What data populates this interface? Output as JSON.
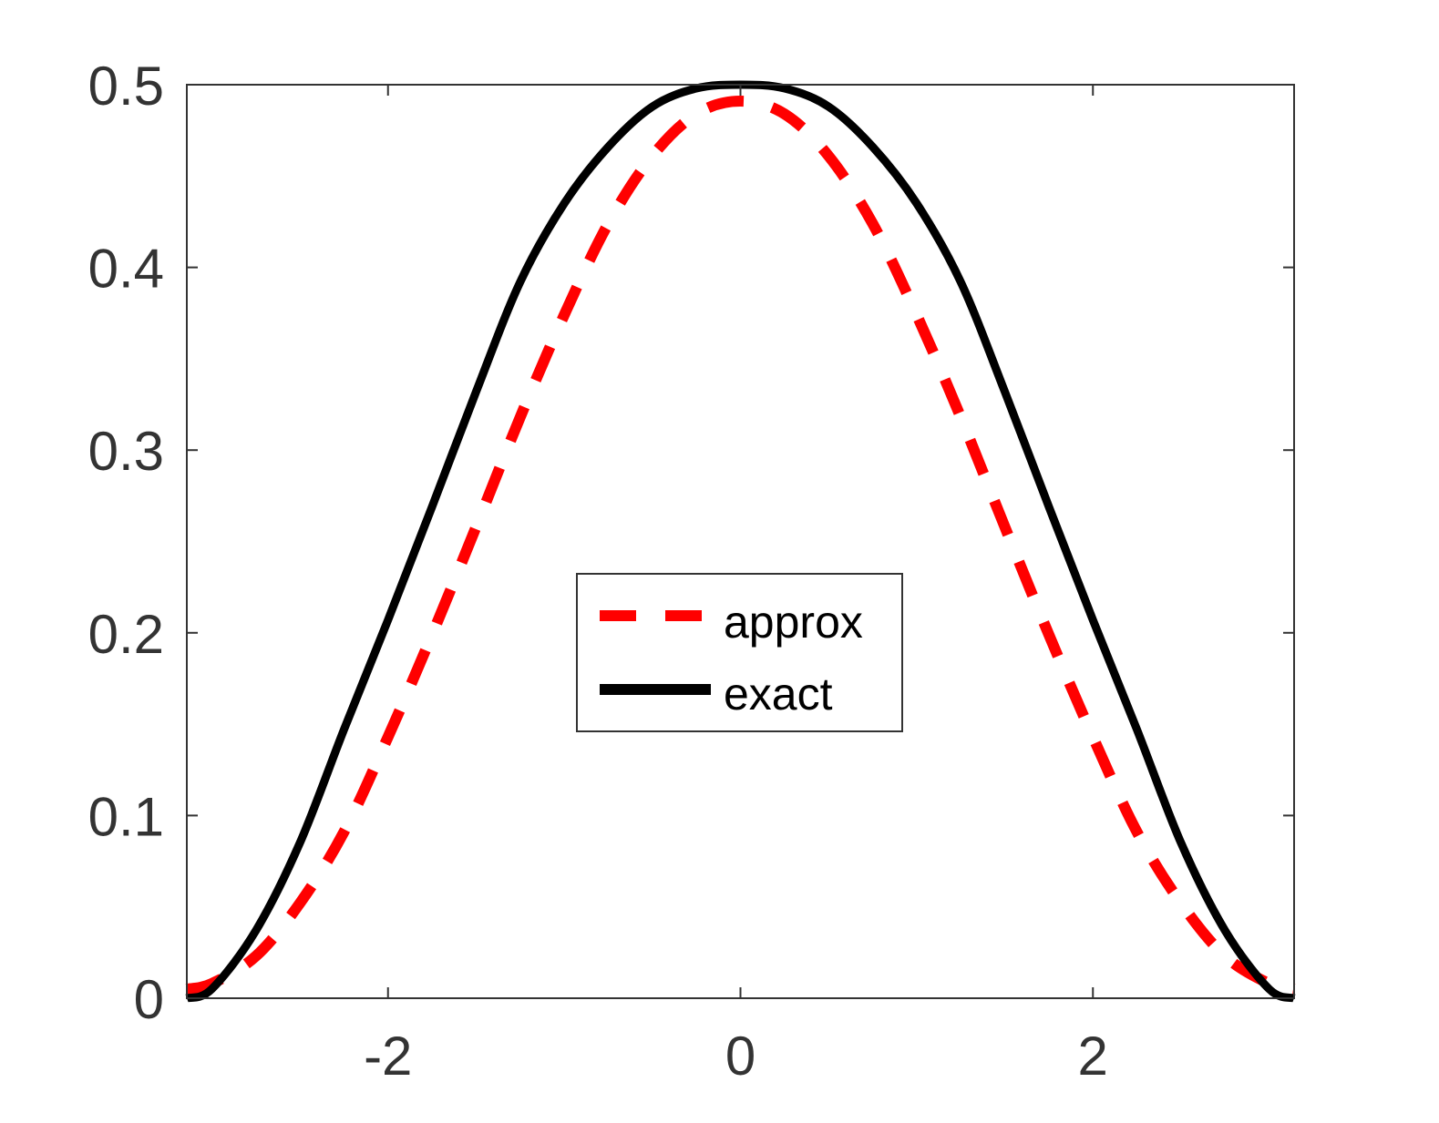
{
  "chart_data": {
    "type": "line",
    "title": "",
    "xlabel": "",
    "ylabel": "",
    "xlim": [
      -3.14159,
      3.14159
    ],
    "ylim": [
      0,
      0.5
    ],
    "xticks": [
      -2,
      0,
      2
    ],
    "xtick_labels": [
      "-2",
      "0",
      "2"
    ],
    "yticks": [
      0,
      0.1,
      0.2,
      0.3,
      0.4,
      0.5
    ],
    "ytick_labels": [
      "0",
      "0.1",
      "0.2",
      "0.3",
      "0.4",
      "0.5"
    ],
    "grid": false,
    "legend_position": "center",
    "series": [
      {
        "name": "approx",
        "color": "#ff0000",
        "style": "dashed",
        "x": [
          -3.1416,
          -3.0,
          -2.75,
          -2.5,
          -2.25,
          -2.0,
          -1.75,
          -1.5,
          -1.25,
          -1.0,
          -0.75,
          -0.5,
          -0.25,
          0.0,
          0.25,
          0.5,
          0.75,
          1.0,
          1.25,
          1.5,
          1.75,
          2.0,
          2.25,
          2.5,
          2.75,
          3.0,
          3.1416
        ],
        "y": [
          0.005,
          0.008,
          0.023,
          0.052,
          0.091,
          0.143,
          0.199,
          0.258,
          0.318,
          0.374,
          0.424,
          0.461,
          0.484,
          0.491,
          0.484,
          0.461,
          0.424,
          0.374,
          0.318,
          0.258,
          0.199,
          0.143,
          0.091,
          0.052,
          0.023,
          0.008,
          0.005
        ]
      },
      {
        "name": "exact",
        "color": "#000000",
        "style": "solid",
        "x": [
          -3.1416,
          -3.0,
          -2.75,
          -2.5,
          -2.25,
          -2.0,
          -1.75,
          -1.5,
          -1.25,
          -1.0,
          -0.75,
          -0.5,
          -0.25,
          0.0,
          0.25,
          0.5,
          0.75,
          1.0,
          1.25,
          1.5,
          1.75,
          2.0,
          2.25,
          2.5,
          2.75,
          3.0,
          3.1416
        ],
        "y": [
          0.0,
          0.005,
          0.037,
          0.085,
          0.147,
          0.207,
          0.269,
          0.332,
          0.392,
          0.435,
          0.466,
          0.488,
          0.498,
          0.5,
          0.498,
          0.488,
          0.466,
          0.435,
          0.392,
          0.332,
          0.269,
          0.207,
          0.147,
          0.085,
          0.037,
          0.005,
          0.0
        ]
      }
    ]
  },
  "colors": {
    "axis": "#333333",
    "approx": "#ff0000",
    "exact": "#000000"
  }
}
